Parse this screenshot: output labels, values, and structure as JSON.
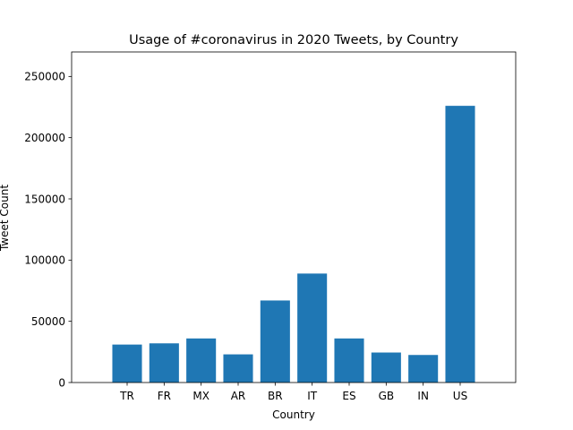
{
  "chart_data": {
    "type": "bar",
    "title": "Usage of #coronavirus in 2020 Tweets, by Country",
    "xlabel": "Country",
    "ylabel": "Tweet Count",
    "categories": [
      "TR",
      "FR",
      "MX",
      "AR",
      "BR",
      "IT",
      "ES",
      "GB",
      "IN",
      "US"
    ],
    "values": [
      31000,
      32000,
      36000,
      23000,
      67000,
      89000,
      36000,
      24500,
      22500,
      226000
    ],
    "ylim": [
      0,
      270000
    ],
    "yticks": [
      0,
      50000,
      100000,
      150000,
      200000,
      250000
    ],
    "xlim": [
      -1.5,
      10.5
    ],
    "grid": false,
    "bar_color": "#1f77b4"
  }
}
